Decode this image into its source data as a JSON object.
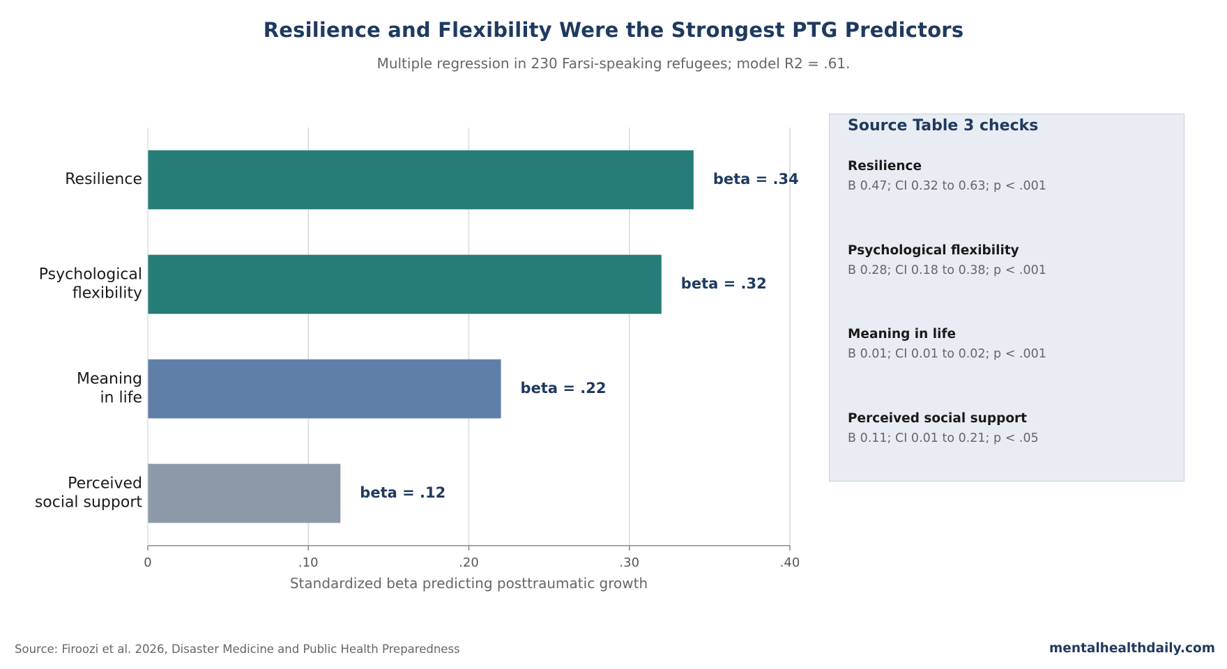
{
  "title": "Resilience and Flexibility Were the Strongest PTG Predictors",
  "subtitle": "Multiple regression in 230 Farsi-speaking refugees; model R2 = .61.",
  "chart_data": {
    "type": "bar",
    "orientation": "horizontal",
    "categories": [
      [
        "Resilience"
      ],
      [
        "Psychological",
        "flexibility"
      ],
      [
        "Meaning",
        "in life"
      ],
      [
        "Perceived",
        "social support"
      ]
    ],
    "values": [
      0.34,
      0.32,
      0.22,
      0.12
    ],
    "data_labels": [
      "beta = .34",
      "beta = .32",
      "beta = .22",
      "beta = .12"
    ],
    "bar_colors": [
      "#267c76",
      "#267c76",
      "#5f7fa8",
      "#8c99a8"
    ],
    "label_color": "#1f3a5f",
    "xlabel": "Standardized beta predicting posttraumatic growth",
    "xlim": [
      0,
      0.4
    ],
    "xticks": [
      0,
      0.1,
      0.2,
      0.3,
      0.4
    ],
    "xtick_labels": [
      "0",
      ".10",
      ".20",
      ".30",
      ".40"
    ],
    "grid": "vertical",
    "legend": "none"
  },
  "panel": {
    "title": "Source Table 3 checks",
    "items": [
      {
        "label": "Resilience",
        "detail": "B 0.47; CI 0.32 to 0.63; p < .001"
      },
      {
        "label": "Psychological flexibility",
        "detail": "B 0.28; CI 0.18 to 0.38; p < .001"
      },
      {
        "label": "Meaning in life",
        "detail": "B 0.01; CI 0.01 to 0.02; p < .001"
      },
      {
        "label": "Perceived social support",
        "detail": "B 0.11; CI 0.01 to 0.21; p < .05"
      }
    ]
  },
  "footer": {
    "source": "Source: Firoozi et al. 2026, Disaster Medicine and Public Health Preparedness",
    "brand": "mentalhealthdaily.com"
  }
}
